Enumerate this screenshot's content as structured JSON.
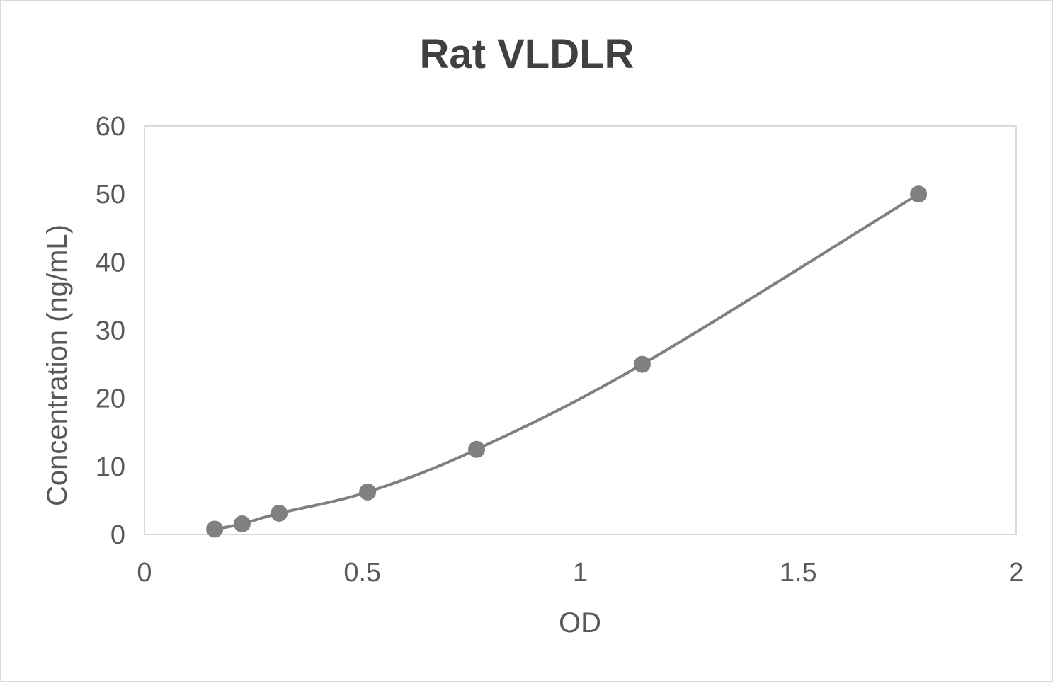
{
  "chart_data": {
    "type": "scatter",
    "title": "Rat VLDLR",
    "xlabel": "OD",
    "ylabel": "Concentration (ng/mL)",
    "xlim": [
      0,
      2
    ],
    "ylim": [
      0,
      60
    ],
    "xticks": [
      "0",
      "0.5",
      "1",
      "1.5",
      "2"
    ],
    "yticks": [
      "0",
      "10",
      "20",
      "30",
      "40",
      "50",
      "60"
    ],
    "grid": false,
    "smoothed_line": true,
    "colors": {
      "series": "#808080",
      "title": "#404040",
      "axis_text": "#595959",
      "plot_border": "#d9d9d9"
    },
    "series": [
      {
        "x": [
          0.161,
          0.224,
          0.309,
          0.512,
          0.762,
          1.142,
          1.776
        ],
        "y": [
          0.78,
          1.56,
          3.125,
          6.25,
          12.5,
          25,
          50
        ]
      }
    ]
  }
}
